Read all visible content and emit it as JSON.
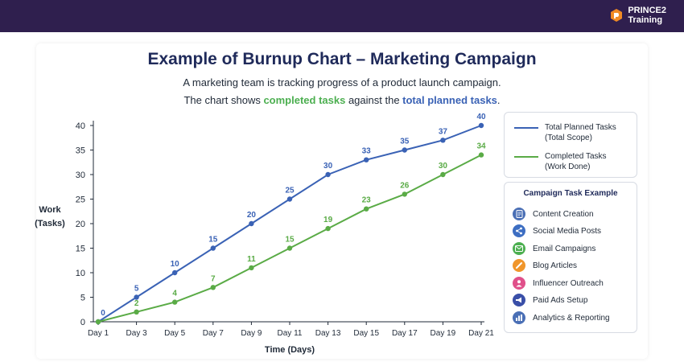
{
  "brand": {
    "line1": "PRINCE2",
    "line2": "Training"
  },
  "header": {
    "title": "Example of Burnup Chart – Marketing Campaign",
    "subtitle_line1": "A marketing team is tracking progress of a product launch campaign.",
    "subtitle_line2_before": "The chart shows ",
    "subtitle_line2_green": "completed tasks",
    "subtitle_line2_middle": " against the ",
    "subtitle_line2_blue": "total planned tasks",
    "subtitle_line2_after": "."
  },
  "colors": {
    "planned": "#3a62b5",
    "completed": "#5aab46",
    "title": "#1f2a5a",
    "topbar": "#2f1f4e"
  },
  "chart_data": {
    "type": "line",
    "xlabel": "Time (Days)",
    "ylabel_line1": "Work",
    "ylabel_line2": "(Tasks)",
    "ylim": [
      0,
      40
    ],
    "yticks": [
      0,
      5,
      10,
      15,
      20,
      25,
      30,
      35,
      40
    ],
    "grid": false,
    "legend_position": "right",
    "categories": [
      "Day 1",
      "Day 3",
      "Day 5",
      "Day 7",
      "Day 9",
      "Day 11",
      "Day 13",
      "Day 15",
      "Day 17",
      "Day 19",
      "Day 21"
    ],
    "series": [
      {
        "name_line1": "Total Planned Tasks",
        "name_line2": "(Total Scope)",
        "values": [
          0,
          5,
          10,
          15,
          20,
          25,
          30,
          33,
          35,
          37,
          40
        ],
        "data_labels": [
          "0",
          "5",
          "10",
          "15",
          "20",
          "25",
          "30",
          "33",
          "35",
          "37",
          "40"
        ]
      },
      {
        "name_line1": "Completed Tasks",
        "name_line2": "(Work Done)",
        "values": [
          0,
          2,
          4,
          7,
          11,
          15,
          19,
          23,
          26,
          30,
          34
        ],
        "data_labels": [
          "",
          "2",
          "4",
          "7",
          "11",
          "15",
          "19",
          "23",
          "26",
          "30",
          "34"
        ]
      }
    ]
  },
  "tasks": {
    "title": "Campaign Task Example",
    "items": [
      {
        "label": "Content Creation",
        "icon": "document-icon",
        "color": "#4a6fb5"
      },
      {
        "label": "Social Media Posts",
        "icon": "share-icon",
        "color": "#3d6ec2"
      },
      {
        "label": "Email Campaigns",
        "icon": "email-icon",
        "color": "#4caf50"
      },
      {
        "label": "Blog Articles",
        "icon": "pencil-icon",
        "color": "#f0962b"
      },
      {
        "label": "Influencer Outreach",
        "icon": "person-icon",
        "color": "#e0508a"
      },
      {
        "label": "Paid Ads Setup",
        "icon": "megaphone-icon",
        "color": "#3a4fa8"
      },
      {
        "label": "Analytics & Reporting",
        "icon": "bar-chart-icon",
        "color": "#4a6fb5"
      }
    ]
  }
}
